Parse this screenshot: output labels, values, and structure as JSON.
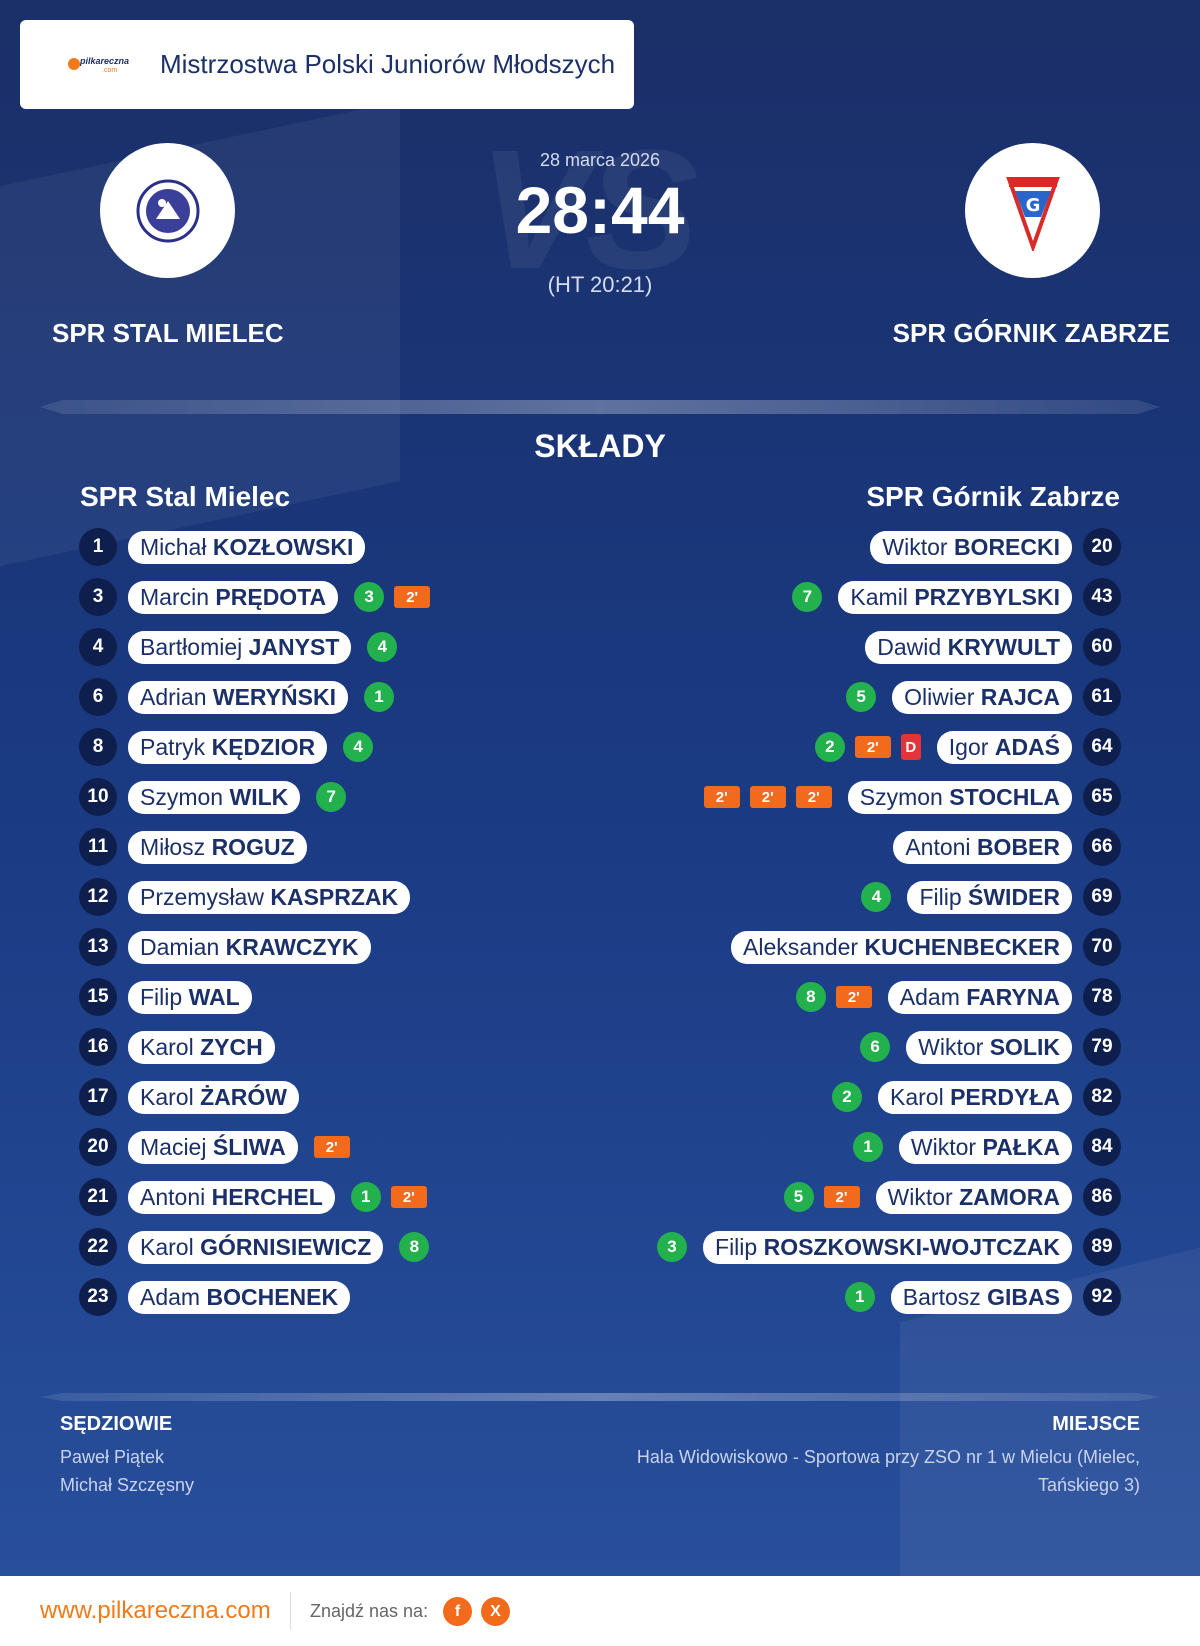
{
  "header": {
    "brand": "pilkareczna",
    "brand_suffix": ".com",
    "title": "Mistrzostwa Polski Juniorów Młodszych"
  },
  "match": {
    "date": "28 marca 2026",
    "score": "28:44",
    "halftime": "(HT 20:21)",
    "home_name": "SPR STAL MIELEC",
    "away_name": "SPR GÓRNIK ZABRZE"
  },
  "lineups": {
    "section_title": "SKŁADY",
    "home_title": "SPR Stal Mielec",
    "away_title": "SPR Górnik Zabrze",
    "home": [
      {
        "num": "1",
        "first": "Michał",
        "last": "KOZŁOWSKI",
        "goals": "",
        "pens": [],
        "red": ""
      },
      {
        "num": "3",
        "first": "Marcin",
        "last": "PRĘDOTA",
        "goals": "3",
        "pens": [
          "2'"
        ],
        "red": ""
      },
      {
        "num": "4",
        "first": "Bartłomiej",
        "last": "JANYST",
        "goals": "4",
        "pens": [],
        "red": ""
      },
      {
        "num": "6",
        "first": "Adrian",
        "last": "WERYŃSKI",
        "goals": "1",
        "pens": [],
        "red": ""
      },
      {
        "num": "8",
        "first": "Patryk",
        "last": "KĘDZIOR",
        "goals": "4",
        "pens": [],
        "red": ""
      },
      {
        "num": "10",
        "first": "Szymon",
        "last": "WILK",
        "goals": "7",
        "pens": [],
        "red": ""
      },
      {
        "num": "11",
        "first": "Miłosz",
        "last": "ROGUZ",
        "goals": "",
        "pens": [],
        "red": ""
      },
      {
        "num": "12",
        "first": "Przemysław",
        "last": "KASPRZAK",
        "goals": "",
        "pens": [],
        "red": ""
      },
      {
        "num": "13",
        "first": "Damian",
        "last": "KRAWCZYK",
        "goals": "",
        "pens": [],
        "red": ""
      },
      {
        "num": "15",
        "first": "Filip",
        "last": "WAL",
        "goals": "",
        "pens": [],
        "red": ""
      },
      {
        "num": "16",
        "first": "Karol",
        "last": "ZYCH",
        "goals": "",
        "pens": [],
        "red": ""
      },
      {
        "num": "17",
        "first": "Karol",
        "last": "ŻARÓW",
        "goals": "",
        "pens": [],
        "red": ""
      },
      {
        "num": "20",
        "first": "Maciej",
        "last": "ŚLIWA",
        "goals": "",
        "pens": [
          "2'"
        ],
        "red": ""
      },
      {
        "num": "21",
        "first": "Antoni",
        "last": "HERCHEL",
        "goals": "1",
        "pens": [
          "2'"
        ],
        "red": ""
      },
      {
        "num": "22",
        "first": "Karol",
        "last": "GÓRNISIEWICZ",
        "goals": "8",
        "pens": [],
        "red": ""
      },
      {
        "num": "23",
        "first": "Adam",
        "last": "BOCHENEK",
        "goals": "",
        "pens": [],
        "red": ""
      }
    ],
    "away": [
      {
        "num": "20",
        "first": "Wiktor",
        "last": "BORECKI",
        "goals": "",
        "pens": [],
        "red": ""
      },
      {
        "num": "43",
        "first": "Kamil",
        "last": "PRZYBYLSKI",
        "goals": "7",
        "pens": [],
        "red": ""
      },
      {
        "num": "60",
        "first": "Dawid",
        "last": "KRYWULT",
        "goals": "",
        "pens": [],
        "red": ""
      },
      {
        "num": "61",
        "first": "Oliwier",
        "last": "RAJCA",
        "goals": "5",
        "pens": [],
        "red": ""
      },
      {
        "num": "64",
        "first": "Igor",
        "last": "ADAŚ",
        "goals": "2",
        "pens": [
          "2'"
        ],
        "red": "D"
      },
      {
        "num": "65",
        "first": "Szymon",
        "last": "STOCHLA",
        "goals": "",
        "pens": [
          "2'",
          "2'",
          "2'"
        ],
        "red": ""
      },
      {
        "num": "66",
        "first": "Antoni",
        "last": "BOBER",
        "goals": "",
        "pens": [],
        "red": ""
      },
      {
        "num": "69",
        "first": "Filip",
        "last": "ŚWIDER",
        "goals": "4",
        "pens": [],
        "red": ""
      },
      {
        "num": "70",
        "first": "Aleksander",
        "last": "KUCHENBECKER",
        "goals": "",
        "pens": [],
        "red": ""
      },
      {
        "num": "78",
        "first": "Adam",
        "last": "FARYNA",
        "goals": "8",
        "pens": [
          "2'"
        ],
        "red": ""
      },
      {
        "num": "79",
        "first": "Wiktor",
        "last": "SOLIK",
        "goals": "6",
        "pens": [],
        "red": ""
      },
      {
        "num": "82",
        "first": "Karol",
        "last": "PERDYŁA",
        "goals": "2",
        "pens": [],
        "red": ""
      },
      {
        "num": "84",
        "first": "Wiktor",
        "last": "PAŁKA",
        "goals": "1",
        "pens": [],
        "red": ""
      },
      {
        "num": "86",
        "first": "Wiktor",
        "last": "ZAMORA",
        "goals": "5",
        "pens": [
          "2'"
        ],
        "red": ""
      },
      {
        "num": "89",
        "first": "Filip",
        "last": "ROSZKOWSKI-WOJTCZAK",
        "goals": "3",
        "pens": [],
        "red": ""
      },
      {
        "num": "92",
        "first": "Bartosz",
        "last": "GIBAS",
        "goals": "1",
        "pens": [],
        "red": ""
      }
    ]
  },
  "officials": {
    "referees_label": "SĘDZIOWIE",
    "referees": [
      "Paweł Piątek",
      "Michał Szczęsny"
    ],
    "venue_label": "MIEJSCE",
    "venue": "Hala Widowiskowo - Sportowa przy ZSO nr 1 w Mielcu (Mielec, Tańskiego 3)"
  },
  "footer": {
    "url": "www.pilkareczna.com",
    "find_us": "Znajdź nas na:",
    "facebook_glyph": "f",
    "x_glyph": "X"
  },
  "colors": {
    "background": "#1b2f68",
    "goal": "#22b14c",
    "penalty": "#f26a1b",
    "red_card": "#e5333a",
    "accent": "#f07a1a"
  },
  "icons": {
    "home_logo": "stal-mielec-crest-icon",
    "away_logo": "gornik-zabrze-crest-icon",
    "facebook": "facebook-icon",
    "x": "x-icon"
  }
}
